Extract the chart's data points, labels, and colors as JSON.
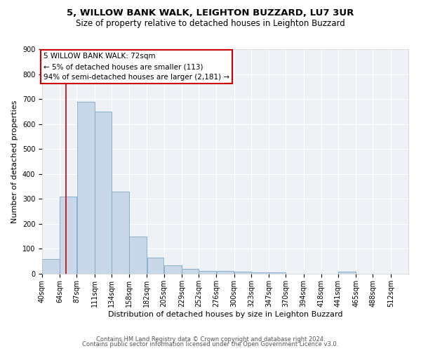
{
  "title1": "5, WILLOW BANK WALK, LEIGHTON BUZZARD, LU7 3UR",
  "title2": "Size of property relative to detached houses in Leighton Buzzard",
  "xlabel": "Distribution of detached houses by size in Leighton Buzzard",
  "ylabel": "Number of detached properties",
  "bar_left_edges": [
    40,
    64,
    87,
    111,
    134,
    158,
    182,
    205,
    229,
    252,
    276,
    300,
    323,
    347,
    370,
    394,
    418,
    441,
    465,
    488
  ],
  "bar_heights": [
    60,
    310,
    690,
    650,
    330,
    150,
    65,
    35,
    20,
    12,
    10,
    8,
    5,
    5,
    0,
    0,
    0,
    8,
    0,
    0
  ],
  "bar_widths": [
    24,
    23,
    24,
    23,
    24,
    24,
    23,
    24,
    23,
    24,
    24,
    23,
    24,
    23,
    24,
    24,
    23,
    24,
    23,
    24
  ],
  "xtick_labels": [
    "40sqm",
    "64sqm",
    "87sqm",
    "111sqm",
    "134sqm",
    "158sqm",
    "182sqm",
    "205sqm",
    "229sqm",
    "252sqm",
    "276sqm",
    "300sqm",
    "323sqm",
    "347sqm",
    "370sqm",
    "394sqm",
    "418sqm",
    "441sqm",
    "465sqm",
    "488sqm",
    "512sqm"
  ],
  "xtick_positions": [
    40,
    64,
    87,
    111,
    134,
    158,
    182,
    205,
    229,
    252,
    276,
    300,
    323,
    347,
    370,
    394,
    418,
    441,
    465,
    488,
    512
  ],
  "ylim": [
    0,
    900
  ],
  "xlim": [
    40,
    536
  ],
  "bar_color": "#c8d8e8",
  "bar_edge_color": "#7da8c8",
  "red_line_x": 72,
  "red_line_color": "#cc0000",
  "annotation_line1": "5 WILLOW BANK WALK: 72sqm",
  "annotation_line2": "← 5% of detached houses are smaller (113)",
  "annotation_line3": "94% of semi-detached houses are larger (2,181) →",
  "annotation_box_color": "#cc0000",
  "footer1": "Contains HM Land Registry data © Crown copyright and database right 2024.",
  "footer2": "Contains public sector information licensed under the Open Government Licence v3.0.",
  "bg_color": "#eef2f7",
  "grid_color": "#ffffff",
  "title1_fontsize": 9.5,
  "title2_fontsize": 8.5,
  "ylabel_fontsize": 8,
  "xlabel_fontsize": 8,
  "tick_fontsize": 7,
  "annot_fontsize": 7.5,
  "footer_fontsize": 6
}
